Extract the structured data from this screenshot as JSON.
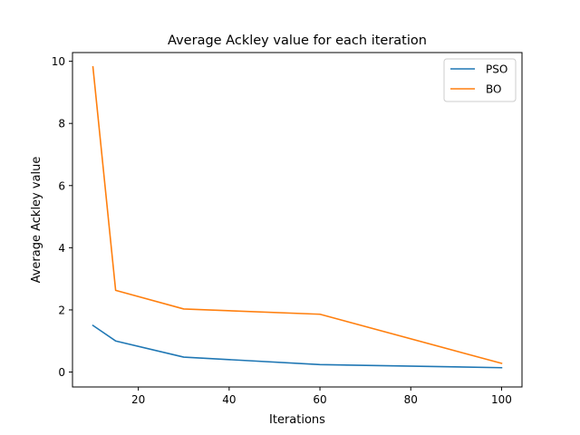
{
  "chart_data": {
    "type": "line",
    "title": "Average Ackley value for each iteration",
    "xlabel": "Iterations",
    "ylabel": "Average Ackley value",
    "xlim": [
      5.5,
      104.5
    ],
    "ylim": [
      -0.48,
      10.28
    ],
    "xticks": [
      20,
      40,
      60,
      80,
      100
    ],
    "yticks": [
      0,
      2,
      4,
      6,
      8,
      10
    ],
    "grid": false,
    "legend_position": "top-right",
    "series": [
      {
        "name": "PSO",
        "color": "#1f77b4",
        "x": [
          10,
          15,
          30,
          60,
          100
        ],
        "y": [
          1.5,
          1.0,
          0.48,
          0.24,
          0.14
        ]
      },
      {
        "name": "BO",
        "color": "#ff7f0e",
        "x": [
          10,
          15,
          30,
          60,
          100
        ],
        "y": [
          9.82,
          2.63,
          2.03,
          1.86,
          0.28
        ]
      }
    ]
  }
}
